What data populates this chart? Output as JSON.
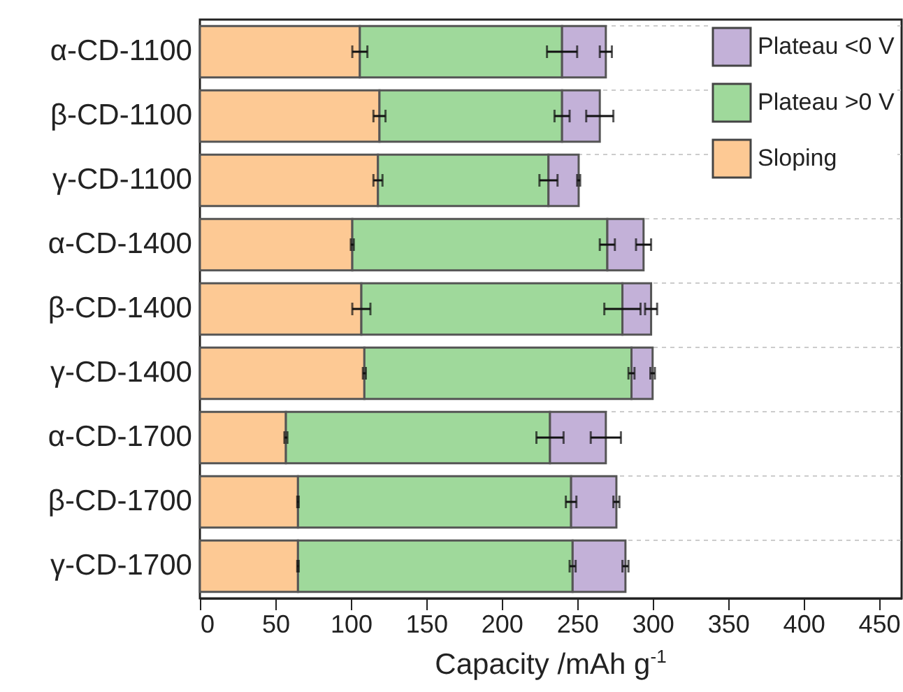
{
  "chart_data": {
    "type": "bar",
    "orientation": "horizontal",
    "stacked": true,
    "xlabel": "Capacity /mAh g$^{-1}$",
    "categories": [
      "α-CD-1100",
      "β-CD-1100",
      "γ-CD-1100",
      "α-CD-1400",
      "β-CD-1400",
      "γ-CD-1400",
      "α-CD-1700",
      "β-CD-1700",
      "γ-CD-1700"
    ],
    "series": [
      {
        "name": "Sloping",
        "color": "#fdc994",
        "values": [
          106,
          119,
          118,
          101,
          107,
          109,
          57,
          65,
          65
        ],
        "errors": [
          5,
          4,
          3,
          1,
          6,
          1,
          1,
          0.5,
          0.5
        ]
      },
      {
        "name": "Plateau >0 V",
        "color": "#9fd99b",
        "values": [
          134,
          121,
          113,
          169,
          173,
          177,
          175,
          181,
          182
        ],
        "errors": [
          10,
          5,
          6,
          5,
          12,
          2,
          9,
          3.5,
          2
        ]
      },
      {
        "name": "Plateau <0 V",
        "color": "#c3b1d8",
        "values": [
          29,
          25,
          20,
          24,
          19,
          14,
          37,
          30,
          35
        ],
        "errors": [
          4,
          9,
          1,
          5,
          4,
          1.5,
          10,
          2,
          2
        ]
      }
    ],
    "xlim": [
      0,
      465
    ],
    "xticks": [
      0,
      50,
      100,
      150,
      200,
      250,
      300,
      350,
      400,
      450
    ],
    "grid": "y",
    "legend": "top right"
  }
}
